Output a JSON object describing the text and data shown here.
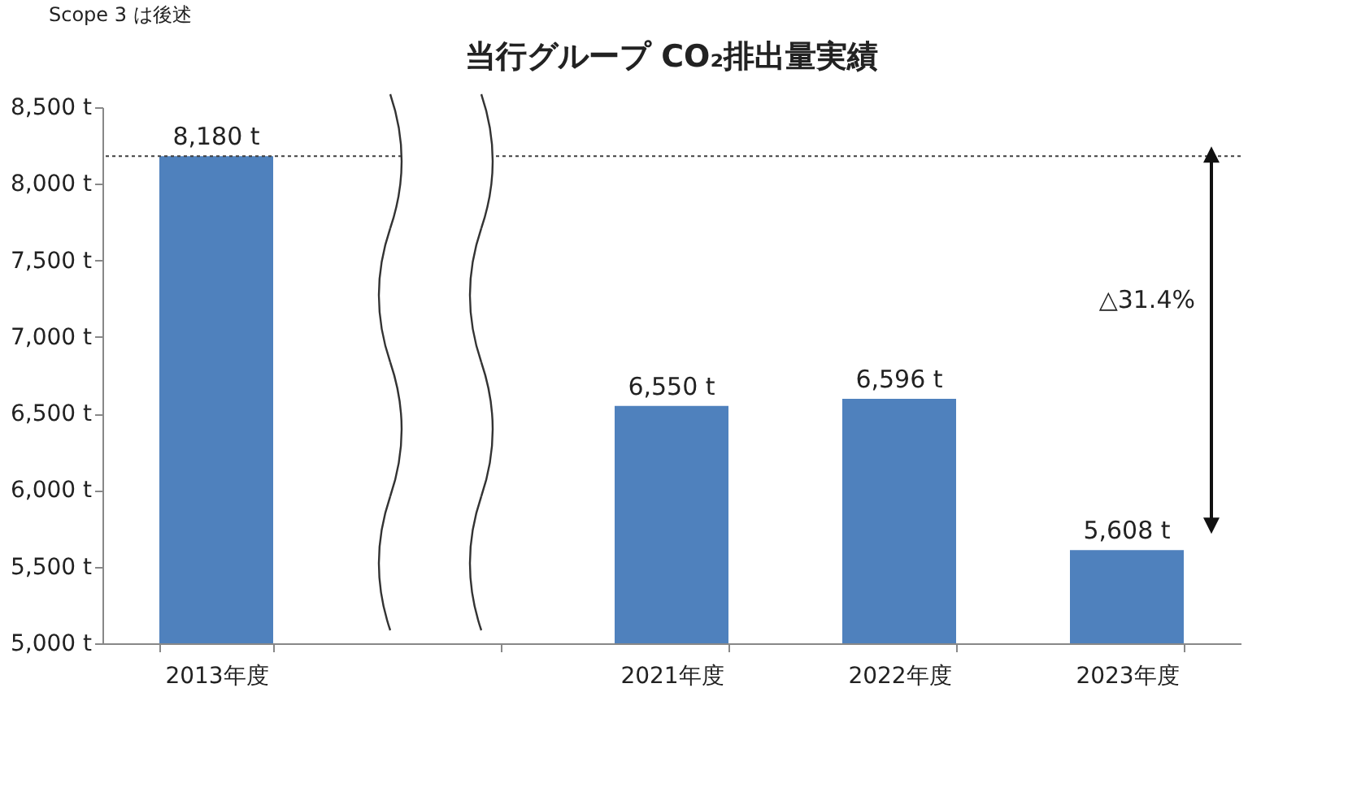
{
  "chart_data": {
    "type": "bar",
    "title": "当行グループ CO₂排出量実績",
    "categories": [
      "2013年度",
      null,
      "2021年度",
      "2022年度",
      "2023年度"
    ],
    "values": [
      8180,
      null,
      6550,
      6596,
      5608
    ],
    "value_labels": [
      "8,180 t",
      null,
      "6,550 t",
      "6,596 t",
      "5,608 t"
    ],
    "color": "#4f81bd",
    "ylim": [
      5000,
      8500
    ],
    "yticks": [
      {
        "value": 5000,
        "label": "5,000 t"
      },
      {
        "value": 5500,
        "label": "5,500 t"
      },
      {
        "value": 6000,
        "label": "6,000 t"
      },
      {
        "value": 6500,
        "label": "6,500 t"
      },
      {
        "value": 7000,
        "label": "7,000 t"
      },
      {
        "value": 7500,
        "label": "7,500 t"
      },
      {
        "value": 8000,
        "label": "8,000 t"
      },
      {
        "value": 8500,
        "label": "8,500 t"
      }
    ],
    "ref_lines": [
      {
        "axis": "y",
        "value": 8180,
        "line_style": "dotted",
        "color": "#404040"
      }
    ],
    "annotations": [
      "Scope 3 は後述",
      "△31.4%"
    ]
  }
}
